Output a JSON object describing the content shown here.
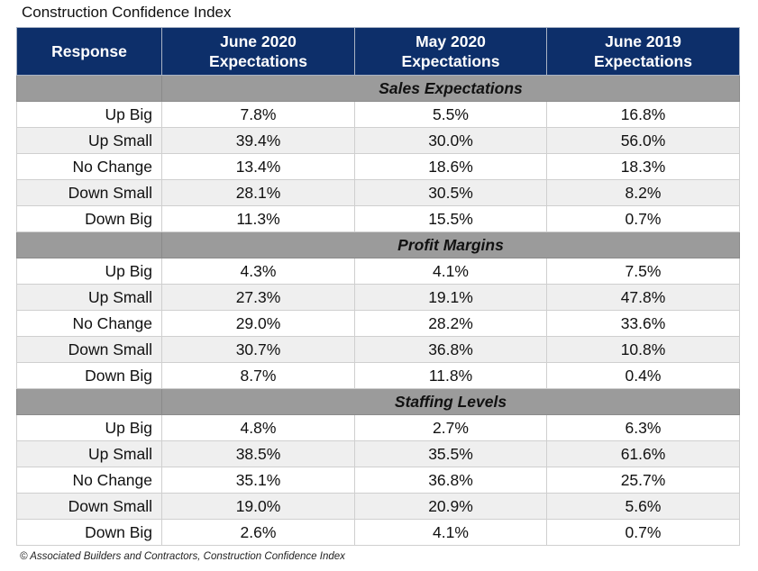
{
  "chart_data": {
    "type": "table",
    "title": "Construction Confidence Index",
    "columns": [
      "Response",
      "June 2020 Expectations",
      "May 2020 Expectations",
      "June 2019 Expectations"
    ],
    "header_lines": [
      [
        "Response"
      ],
      [
        "June 2020",
        "Expectations"
      ],
      [
        "May 2020",
        "Expectations"
      ],
      [
        "June 2019",
        "Expectations"
      ]
    ],
    "sections": [
      {
        "name": "Sales Expectations",
        "rows": [
          {
            "response": "Up Big",
            "values": [
              "7.8%",
              "5.5%",
              "16.8%"
            ]
          },
          {
            "response": "Up Small",
            "values": [
              "39.4%",
              "30.0%",
              "56.0%"
            ]
          },
          {
            "response": "No Change",
            "values": [
              "13.4%",
              "18.6%",
              "18.3%"
            ]
          },
          {
            "response": "Down Small",
            "values": [
              "28.1%",
              "30.5%",
              "8.2%"
            ]
          },
          {
            "response": "Down Big",
            "values": [
              "11.3%",
              "15.5%",
              "0.7%"
            ]
          }
        ]
      },
      {
        "name": "Profit Margins",
        "rows": [
          {
            "response": "Up Big",
            "values": [
              "4.3%",
              "4.1%",
              "7.5%"
            ]
          },
          {
            "response": "Up Small",
            "values": [
              "27.3%",
              "19.1%",
              "47.8%"
            ]
          },
          {
            "response": "No Change",
            "values": [
              "29.0%",
              "28.2%",
              "33.6%"
            ]
          },
          {
            "response": "Down Small",
            "values": [
              "30.7%",
              "36.8%",
              "10.8%"
            ]
          },
          {
            "response": "Down Big",
            "values": [
              "8.7%",
              "11.8%",
              "0.4%"
            ]
          }
        ]
      },
      {
        "name": "Staffing Levels",
        "rows": [
          {
            "response": "Up Big",
            "values": [
              "4.8%",
              "2.7%",
              "6.3%"
            ]
          },
          {
            "response": "Up Small",
            "values": [
              "38.5%",
              "35.5%",
              "61.6%"
            ]
          },
          {
            "response": "No Change",
            "values": [
              "35.1%",
              "36.8%",
              "25.7%"
            ]
          },
          {
            "response": "Down Small",
            "values": [
              "19.0%",
              "20.9%",
              "5.6%"
            ]
          },
          {
            "response": "Down Big",
            "values": [
              "2.6%",
              "4.1%",
              "0.7%"
            ]
          }
        ]
      }
    ]
  },
  "footer": "© Associated Builders and Contractors, Construction Confidence Index",
  "colors": {
    "header_bg": "#0d2f6a",
    "section_bg": "#9b9b9b",
    "alt_row_bg": "#efefef"
  }
}
